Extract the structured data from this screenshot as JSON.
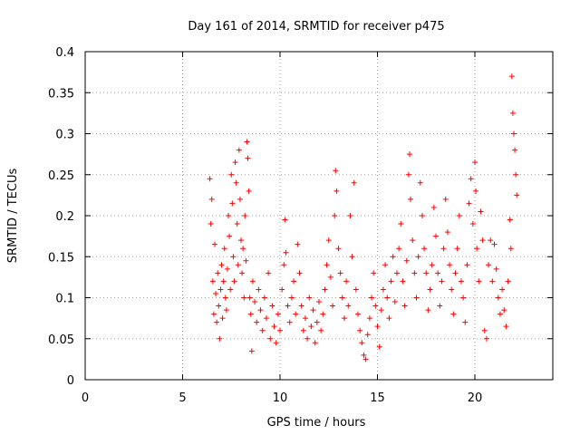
{
  "chart_data": {
    "type": "scatter",
    "title": "Day 161 of 2014, SRMTID for receiver p475",
    "xlabel": "GPS time / hours",
    "ylabel": "SRMTID / TECUs",
    "xlim": [
      0,
      24
    ],
    "ylim": [
      0,
      0.4
    ],
    "xticks": [
      0,
      5,
      10,
      15,
      20
    ],
    "xtick_labels": [
      "0",
      "5",
      "10",
      "15",
      "20"
    ],
    "yticks": [
      0,
      0.05,
      0.1,
      0.15,
      0.2,
      0.25,
      0.3,
      0.35,
      0.4
    ],
    "ytick_labels": [
      "0",
      "0.05",
      "0.1",
      "0.15",
      "0.2",
      "0.25",
      "0.3",
      "0.35",
      "0.4"
    ],
    "grid": true,
    "marker": "+",
    "marker_color": "#ff0000",
    "series": [
      {
        "name": "SRMTID",
        "points": [
          [
            6.4,
            0.245
          ],
          [
            6.45,
            0.19
          ],
          [
            6.5,
            0.22
          ],
          [
            6.55,
            0.12
          ],
          [
            6.6,
            0.08
          ],
          [
            6.65,
            0.165
          ],
          [
            6.7,
            0.105
          ],
          [
            6.75,
            0.07
          ],
          [
            6.8,
            0.13
          ],
          [
            6.85,
            0.09
          ],
          [
            6.9,
            0.05
          ],
          [
            6.95,
            0.11
          ],
          [
            7.0,
            0.14
          ],
          [
            7.05,
            0.075
          ],
          [
            7.1,
            0.12
          ],
          [
            7.15,
            0.16
          ],
          [
            7.2,
            0.1
          ],
          [
            7.25,
            0.085
          ],
          [
            7.3,
            0.135
          ],
          [
            7.35,
            0.2
          ],
          [
            7.4,
            0.175
          ],
          [
            7.45,
            0.11
          ],
          [
            7.5,
            0.25
          ],
          [
            7.55,
            0.215
          ],
          [
            7.6,
            0.15
          ],
          [
            7.65,
            0.12
          ],
          [
            7.7,
            0.265
          ],
          [
            7.75,
            0.24
          ],
          [
            7.8,
            0.19
          ],
          [
            7.85,
            0.14
          ],
          [
            7.9,
            0.28
          ],
          [
            7.95,
            0.22
          ],
          [
            8.0,
            0.17
          ],
          [
            8.05,
            0.13
          ],
          [
            8.1,
            0.16
          ],
          [
            8.15,
            0.1
          ],
          [
            8.2,
            0.2
          ],
          [
            8.25,
            0.145
          ],
          [
            8.3,
            0.29
          ],
          [
            8.35,
            0.27
          ],
          [
            8.4,
            0.23
          ],
          [
            8.45,
            0.1
          ],
          [
            8.5,
            0.08
          ],
          [
            8.55,
            0.035
          ],
          [
            8.6,
            0.12
          ],
          [
            8.7,
            0.095
          ],
          [
            8.8,
            0.07
          ],
          [
            8.9,
            0.11
          ],
          [
            9.0,
            0.085
          ],
          [
            9.1,
            0.06
          ],
          [
            9.2,
            0.1
          ],
          [
            9.3,
            0.075
          ],
          [
            9.4,
            0.13
          ],
          [
            9.5,
            0.05
          ],
          [
            9.6,
            0.09
          ],
          [
            9.7,
            0.065
          ],
          [
            9.8,
            0.045
          ],
          [
            9.9,
            0.08
          ],
          [
            10.0,
            0.06
          ],
          [
            10.1,
            0.11
          ],
          [
            10.2,
            0.14
          ],
          [
            10.25,
            0.195
          ],
          [
            10.3,
            0.155
          ],
          [
            10.4,
            0.09
          ],
          [
            10.5,
            0.07
          ],
          [
            10.6,
            0.1
          ],
          [
            10.7,
            0.12
          ],
          [
            10.8,
            0.08
          ],
          [
            10.9,
            0.165
          ],
          [
            11.0,
            0.13
          ],
          [
            11.1,
            0.09
          ],
          [
            11.2,
            0.06
          ],
          [
            11.3,
            0.075
          ],
          [
            11.4,
            0.05
          ],
          [
            11.5,
            0.1
          ],
          [
            11.6,
            0.065
          ],
          [
            11.7,
            0.085
          ],
          [
            11.8,
            0.045
          ],
          [
            11.9,
            0.07
          ],
          [
            12.0,
            0.095
          ],
          [
            12.1,
            0.06
          ],
          [
            12.2,
            0.08
          ],
          [
            12.3,
            0.11
          ],
          [
            12.4,
            0.14
          ],
          [
            12.5,
            0.17
          ],
          [
            12.6,
            0.125
          ],
          [
            12.7,
            0.09
          ],
          [
            12.8,
            0.2
          ],
          [
            12.85,
            0.255
          ],
          [
            12.9,
            0.23
          ],
          [
            13.0,
            0.16
          ],
          [
            13.1,
            0.13
          ],
          [
            13.2,
            0.1
          ],
          [
            13.3,
            0.075
          ],
          [
            13.4,
            0.12
          ],
          [
            13.5,
            0.09
          ],
          [
            13.6,
            0.2
          ],
          [
            13.7,
            0.15
          ],
          [
            13.8,
            0.24
          ],
          [
            13.9,
            0.11
          ],
          [
            14.0,
            0.08
          ],
          [
            14.1,
            0.06
          ],
          [
            14.2,
            0.045
          ],
          [
            14.3,
            0.03
          ],
          [
            14.4,
            0.025
          ],
          [
            14.5,
            0.055
          ],
          [
            14.6,
            0.075
          ],
          [
            14.7,
            0.1
          ],
          [
            14.8,
            0.13
          ],
          [
            14.9,
            0.09
          ],
          [
            15.0,
            0.065
          ],
          [
            15.1,
            0.04
          ],
          [
            15.2,
            0.085
          ],
          [
            15.3,
            0.11
          ],
          [
            15.4,
            0.14
          ],
          [
            15.5,
            0.1
          ],
          [
            15.6,
            0.075
          ],
          [
            15.7,
            0.12
          ],
          [
            15.8,
            0.15
          ],
          [
            15.9,
            0.095
          ],
          [
            16.0,
            0.13
          ],
          [
            16.1,
            0.16
          ],
          [
            16.2,
            0.19
          ],
          [
            16.3,
            0.12
          ],
          [
            16.4,
            0.09
          ],
          [
            16.5,
            0.145
          ],
          [
            16.6,
            0.25
          ],
          [
            16.65,
            0.275
          ],
          [
            16.7,
            0.22
          ],
          [
            16.8,
            0.17
          ],
          [
            16.9,
            0.13
          ],
          [
            17.0,
            0.1
          ],
          [
            17.1,
            0.15
          ],
          [
            17.2,
            0.24
          ],
          [
            17.3,
            0.2
          ],
          [
            17.4,
            0.16
          ],
          [
            17.5,
            0.13
          ],
          [
            17.6,
            0.085
          ],
          [
            17.7,
            0.11
          ],
          [
            17.8,
            0.14
          ],
          [
            17.9,
            0.21
          ],
          [
            18.0,
            0.175
          ],
          [
            18.1,
            0.13
          ],
          [
            18.2,
            0.09
          ],
          [
            18.3,
            0.12
          ],
          [
            18.4,
            0.16
          ],
          [
            18.5,
            0.22
          ],
          [
            18.6,
            0.18
          ],
          [
            18.7,
            0.14
          ],
          [
            18.8,
            0.11
          ],
          [
            18.9,
            0.08
          ],
          [
            19.0,
            0.13
          ],
          [
            19.1,
            0.16
          ],
          [
            19.2,
            0.2
          ],
          [
            19.3,
            0.12
          ],
          [
            19.4,
            0.1
          ],
          [
            19.5,
            0.07
          ],
          [
            19.6,
            0.14
          ],
          [
            19.7,
            0.215
          ],
          [
            19.8,
            0.245
          ],
          [
            19.9,
            0.19
          ],
          [
            20.0,
            0.265
          ],
          [
            20.05,
            0.23
          ],
          [
            20.1,
            0.16
          ],
          [
            20.2,
            0.12
          ],
          [
            20.3,
            0.205
          ],
          [
            20.4,
            0.17
          ],
          [
            20.5,
            0.06
          ],
          [
            20.6,
            0.05
          ],
          [
            20.7,
            0.14
          ],
          [
            20.8,
            0.17
          ],
          [
            20.9,
            0.12
          ],
          [
            21.0,
            0.165
          ],
          [
            21.1,
            0.135
          ],
          [
            21.2,
            0.1
          ],
          [
            21.3,
            0.08
          ],
          [
            21.4,
            0.11
          ],
          [
            21.5,
            0.085
          ],
          [
            21.6,
            0.065
          ],
          [
            21.7,
            0.12
          ],
          [
            21.8,
            0.195
          ],
          [
            21.85,
            0.16
          ],
          [
            21.9,
            0.37
          ],
          [
            21.95,
            0.325
          ],
          [
            22.0,
            0.3
          ],
          [
            22.05,
            0.28
          ],
          [
            22.1,
            0.25
          ],
          [
            22.15,
            0.225
          ]
        ]
      }
    ]
  }
}
